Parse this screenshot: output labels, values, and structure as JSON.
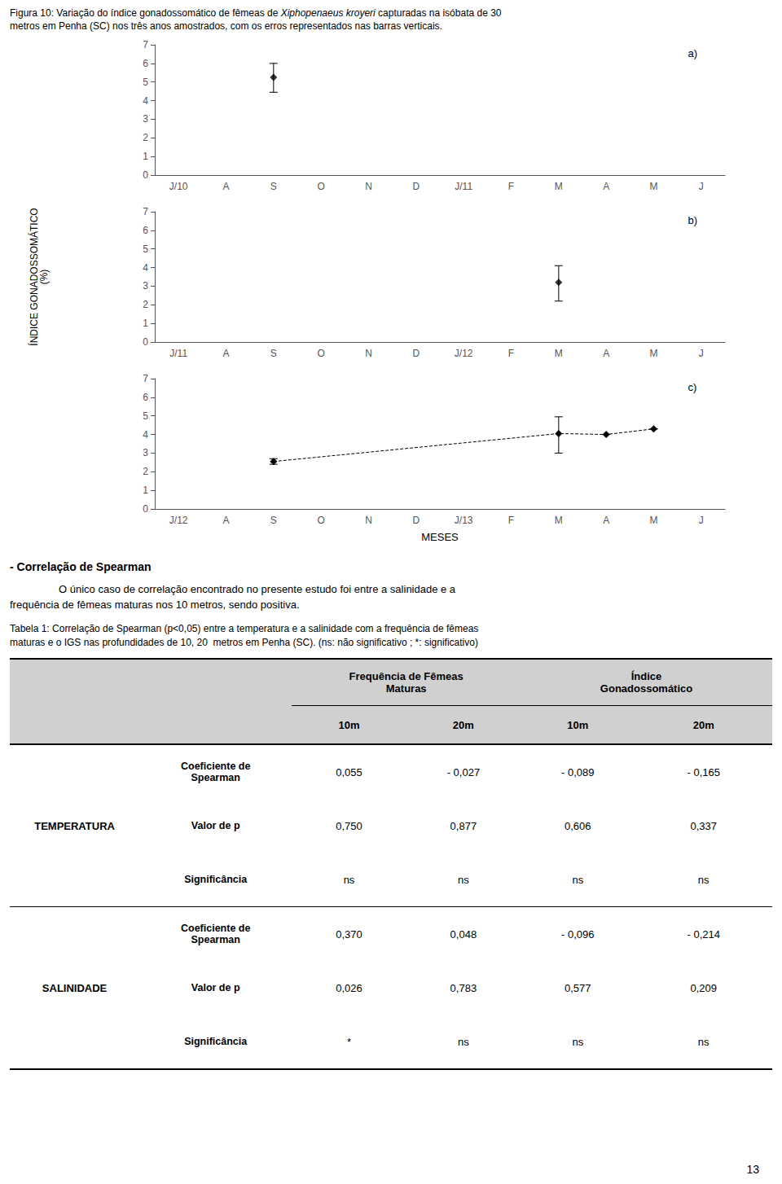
{
  "caption": [
    "Figura 10: Variação do índice gonadossomático de fêmeas de ",
    "Xiphopenaeus kroyeri",
    " capturadas na isóbata de 30"
  ],
  "caption_line2": "metros em Penha (SC) nos três anos amostrados, com os erros representados nas barras verticais.",
  "ylabel": "ÍNDICE GONADOSSOMÁTICO\n(%)",
  "xlabel": "MESES",
  "chart_data": [
    {
      "type": "scatter",
      "annotation": "a)",
      "categories": [
        "J/10",
        "A",
        "S",
        "O",
        "N",
        "D",
        "J/11",
        "F",
        "M",
        "A",
        "M",
        "J"
      ],
      "values": [
        null,
        null,
        5.25,
        null,
        null,
        null,
        null,
        null,
        null,
        null,
        null,
        null
      ],
      "error_lo": [
        null,
        null,
        0.8,
        null,
        null,
        null,
        null,
        null,
        null,
        null,
        null,
        null
      ],
      "error_hi": [
        null,
        null,
        0.75,
        null,
        null,
        null,
        null,
        null,
        null,
        null,
        null,
        null
      ],
      "color": "#000000",
      "marker": "diamond",
      "ylim": [
        0,
        7
      ],
      "yticks": [
        0,
        1,
        2,
        3,
        4,
        5,
        6,
        7
      ],
      "grid": false
    },
    {
      "type": "scatter",
      "annotation": "b)",
      "categories": [
        "J/11",
        "A",
        "S",
        "O",
        "N",
        "D",
        "J/12",
        "F",
        "M",
        "A",
        "M",
        "J"
      ],
      "values": [
        null,
        null,
        null,
        null,
        null,
        null,
        null,
        null,
        3.2,
        null,
        null,
        null
      ],
      "error_lo": [
        null,
        null,
        null,
        null,
        null,
        null,
        null,
        null,
        1.0,
        null,
        null,
        null
      ],
      "error_hi": [
        null,
        null,
        null,
        null,
        null,
        null,
        null,
        null,
        0.9,
        null,
        null,
        null
      ],
      "color": "#000000",
      "marker": "diamond",
      "ylim": [
        0,
        7
      ],
      "yticks": [
        0,
        1,
        2,
        3,
        4,
        5,
        6,
        7
      ],
      "grid": false
    },
    {
      "type": "line",
      "annotation": "c)",
      "categories": [
        "J/12",
        "A",
        "S",
        "O",
        "N",
        "D",
        "J/13",
        "F",
        "M",
        "A",
        "M",
        "J"
      ],
      "values": [
        null,
        null,
        2.55,
        null,
        null,
        null,
        null,
        null,
        4.05,
        4.0,
        4.3,
        null
      ],
      "error_lo": [
        null,
        null,
        0.15,
        null,
        null,
        null,
        null,
        null,
        1.05,
        0.0,
        0.0,
        null
      ],
      "error_hi": [
        null,
        null,
        0.15,
        null,
        null,
        null,
        null,
        null,
        0.9,
        0.0,
        0.0,
        null
      ],
      "color": "#000000",
      "marker": "diamond",
      "line_style": "dashed",
      "ylim": [
        0,
        7
      ],
      "yticks": [
        0,
        1,
        2,
        3,
        4,
        5,
        6,
        7
      ],
      "grid": false
    }
  ],
  "section_title": "- Correlação de Spearman",
  "paragraph": [
    "O único caso de correlação encontrado no presente estudo foi entre a salinidade e a",
    "frequência de fêmeas maturas nos 10 metros, sendo positiva."
  ],
  "table": {
    "caption": [
      "Tabela 1: Correlação de Spearman (p<0,05) entre a temperatura e a salinidade com a frequência de fêmeas",
      "maturas e o IGS nas profundidades de 10, 20  metros em Penha (SC). (ns: não significativo ; *: significativo)"
    ],
    "header_groups": [
      "Frequência de Fêmeas\nMaturas",
      "Índice\nGonadossomático"
    ],
    "columns": [
      "10m",
      "20m",
      "10m",
      "20m"
    ],
    "color": "#d0d0d0",
    "row_groups": [
      {
        "label": "TEMPERATURA",
        "rows": [
          {
            "label": "Coeficiente de\nSpearman",
            "values": [
              "0,055",
              "- 0,027",
              "- 0,089",
              "- 0,165"
            ]
          },
          {
            "label": "Valor de p",
            "values": [
              "0,750",
              "0,877",
              "0,606",
              "0,337"
            ]
          },
          {
            "label": "Significância",
            "values": [
              "ns",
              "ns",
              "ns",
              "ns"
            ]
          }
        ]
      },
      {
        "label": "SALINIDADE",
        "rows": [
          {
            "label": "Coeficiente de\nSpearman",
            "values": [
              "0,370",
              "0,048",
              "- 0,096",
              "- 0,214"
            ]
          },
          {
            "label": "Valor de p",
            "values": [
              "0,026",
              "0,783",
              "0,577",
              "0,209"
            ]
          },
          {
            "label": "Significância",
            "values": [
              "*",
              "ns",
              "ns",
              "ns"
            ]
          }
        ]
      }
    ]
  },
  "page_number": "13"
}
